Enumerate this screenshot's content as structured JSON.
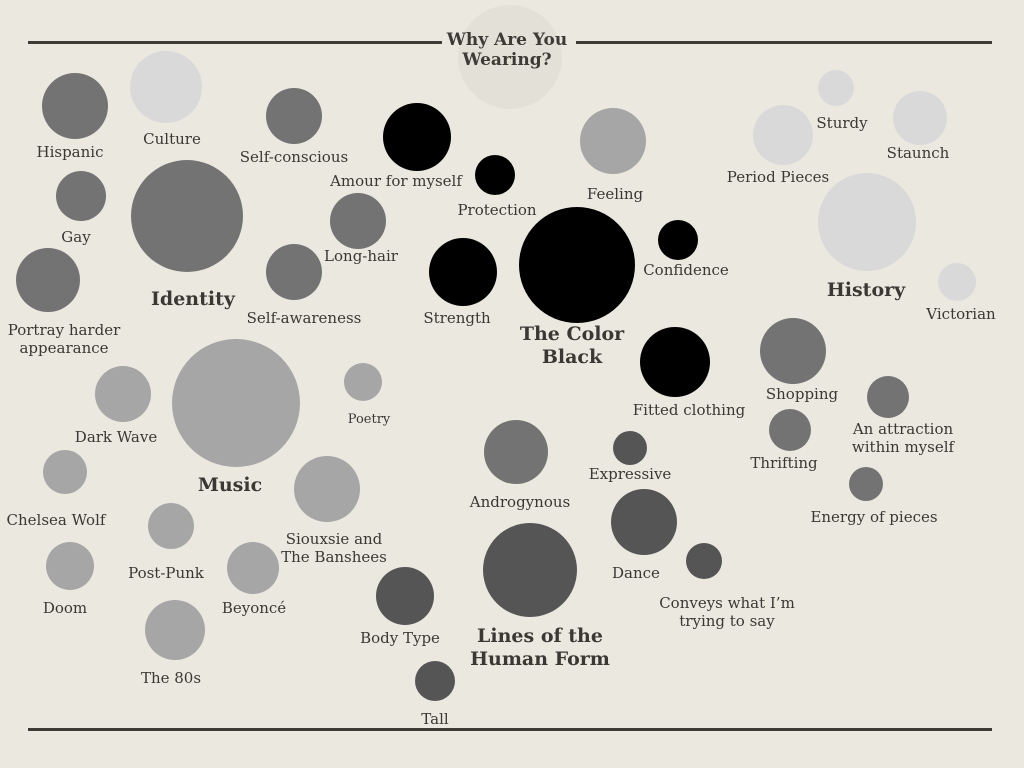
{
  "title": "Why Are You Wearing?",
  "colors": {
    "background": "#ebe8e0",
    "rule": "#3d3b36",
    "black": "#000000",
    "dark_gray": "#555555",
    "medium_gray": "#737373",
    "light_gray": "#a6a6a6",
    "pale_gray": "#d9d9d9",
    "title_halo": "#e3e0d8"
  },
  "groups": [
    {
      "id": "identity",
      "label": "Identity"
    },
    {
      "id": "music",
      "label": "Music"
    },
    {
      "id": "color_black",
      "label": "The Color Black"
    },
    {
      "id": "history",
      "label": "History"
    },
    {
      "id": "human_form",
      "label": "Lines of the Human Form"
    }
  ],
  "items": [
    {
      "label": "Hispanic",
      "group": "identity"
    },
    {
      "label": "Culture",
      "group": "history"
    },
    {
      "label": "Self-conscious",
      "group": "identity"
    },
    {
      "label": "Gay",
      "group": "identity"
    },
    {
      "label": "Portray harder appearance",
      "group": "identity"
    },
    {
      "label": "Long-hair",
      "group": "identity"
    },
    {
      "label": "Self-awareness",
      "group": "identity"
    },
    {
      "label": "Amour for myself",
      "group": "color_black"
    },
    {
      "label": "Protection",
      "group": "color_black"
    },
    {
      "label": "Strength",
      "group": "color_black"
    },
    {
      "label": "Confidence",
      "group": "color_black"
    },
    {
      "label": "Fitted clothing",
      "group": "color_black"
    },
    {
      "label": "Feeling",
      "group": "music"
    },
    {
      "label": "Sturdy",
      "group": "history"
    },
    {
      "label": "Period Pieces",
      "group": "history"
    },
    {
      "label": "Staunch",
      "group": "history"
    },
    {
      "label": "Victorian",
      "group": "history"
    },
    {
      "label": "Shopping",
      "group": "identity"
    },
    {
      "label": "Thrifting",
      "group": "identity"
    },
    {
      "label": "An attraction within myself",
      "group": "identity"
    },
    {
      "label": "Energy of pieces",
      "group": "identity"
    },
    {
      "label": "Dark Wave",
      "group": "music"
    },
    {
      "label": "Poetry",
      "group": "music"
    },
    {
      "label": "Chelsea Wolf",
      "group": "music"
    },
    {
      "label": "Post-Punk",
      "group": "music"
    },
    {
      "label": "Siouxsie and The Banshees",
      "group": "music"
    },
    {
      "label": "Doom",
      "group": "music"
    },
    {
      "label": "Beyoncé",
      "group": "music"
    },
    {
      "label": "The 80s",
      "group": "music"
    },
    {
      "label": "Androgynous",
      "group": "identity"
    },
    {
      "label": "Expressive",
      "group": "human_form"
    },
    {
      "label": "Dance",
      "group": "human_form"
    },
    {
      "label": "Conveys what I’m trying to say",
      "group": "human_form"
    },
    {
      "label": "Body Type",
      "group": "human_form"
    },
    {
      "label": "Tall",
      "group": "human_form"
    }
  ]
}
